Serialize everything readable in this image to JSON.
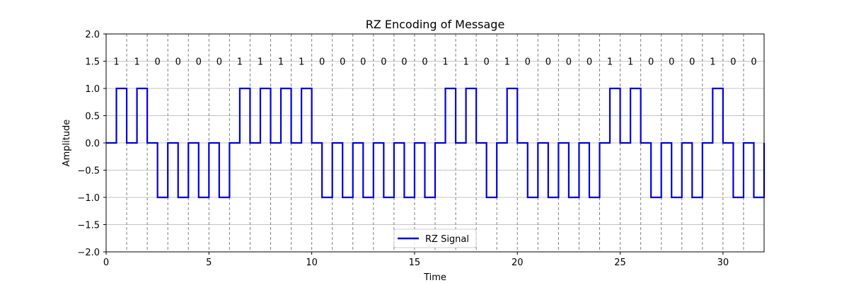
{
  "chart_data": {
    "type": "line",
    "title": "RZ Encoding of Message",
    "xlabel": "Time",
    "ylabel": "Amplitude",
    "xlim": [
      0,
      32
    ],
    "ylim": [
      -2.0,
      2.0
    ],
    "x_ticks": [
      0,
      5,
      10,
      15,
      20,
      25,
      30
    ],
    "x_tick_labels": [
      "0",
      "5",
      "10",
      "15",
      "20",
      "25",
      "30"
    ],
    "y_ticks": [
      -2.0,
      -1.5,
      -1.0,
      -0.5,
      0.0,
      0.5,
      1.0,
      1.5,
      2.0
    ],
    "y_tick_labels": [
      "−2.0",
      "−1.5",
      "−1.0",
      "−0.5",
      "0.0",
      "0.5",
      "1.0",
      "1.5",
      "2.0"
    ],
    "grid": "horizontal",
    "bit_boundaries": [
      1,
      2,
      3,
      4,
      5,
      6,
      7,
      8,
      9,
      10,
      11,
      12,
      13,
      14,
      15,
      16,
      17,
      18,
      19,
      20,
      21,
      22,
      23,
      24,
      25,
      26,
      27,
      28,
      29,
      30,
      31
    ],
    "bits": [
      "1",
      "1",
      "0",
      "0",
      "0",
      "0",
      "1",
      "1",
      "1",
      "1",
      "0",
      "0",
      "0",
      "0",
      "0",
      "0",
      "1",
      "1",
      "0",
      "1",
      "0",
      "0",
      "0",
      "0",
      "1",
      "1",
      "0",
      "0",
      "0",
      "1",
      "0",
      "0"
    ],
    "bit_label_y": 1.5,
    "series": [
      {
        "name": "RZ Signal",
        "color": "#0000dd",
        "pulse_levels": [
          1,
          1,
          -1,
          -1,
          -1,
          -1,
          1,
          1,
          1,
          1,
          -1,
          -1,
          -1,
          -1,
          -1,
          -1,
          1,
          1,
          -1,
          1,
          -1,
          -1,
          -1,
          -1,
          1,
          1,
          -1,
          -1,
          -1,
          1,
          -1,
          -1
        ]
      }
    ],
    "legend": {
      "location": "lower center"
    }
  }
}
